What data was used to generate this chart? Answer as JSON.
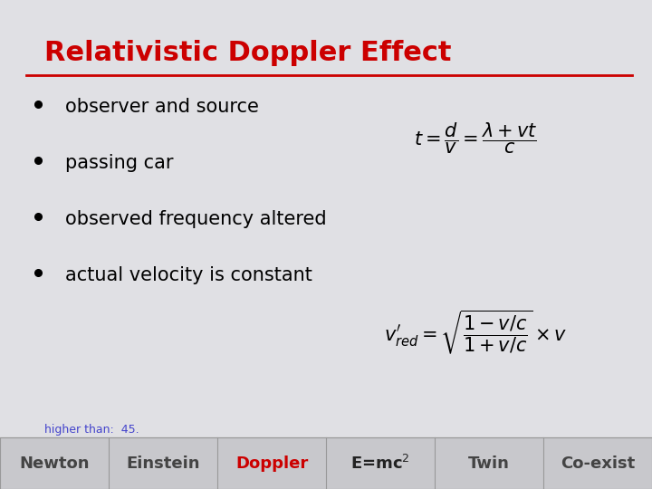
{
  "title": "Relativistic Doppler Effect",
  "title_color": "#cc0000",
  "title_fontsize": 22,
  "bg_color": "#e0e0e4",
  "bullet_points": [
    "observer and source",
    "passing car",
    "observed frequency altered",
    "actual velocity is constant"
  ],
  "bullet_fontsize": 15,
  "formula1": "$t = \\dfrac{d}{v} = \\dfrac{\\lambda + vt}{c}$",
  "formula2": "$v^{\\prime}_{red} = \\sqrt{\\dfrac{1 - v/c}{1 + v/c}} \\times v$",
  "formula_fontsize": 15,
  "nav_labels": [
    "Newton",
    "Einstein",
    "Doppler",
    "E=mc$^2$",
    "Twin",
    "Co-exist"
  ],
  "nav_colors": [
    "#444444",
    "#444444",
    "#cc0000",
    "#222222",
    "#444444",
    "#444444"
  ],
  "nav_bg": "#c8c8cc",
  "nav_fontsize": 13,
  "rule_color": "#cc0000",
  "hint_text": "higher than:  45.",
  "hint_color": "#4444cc",
  "hint_fontsize": 9
}
